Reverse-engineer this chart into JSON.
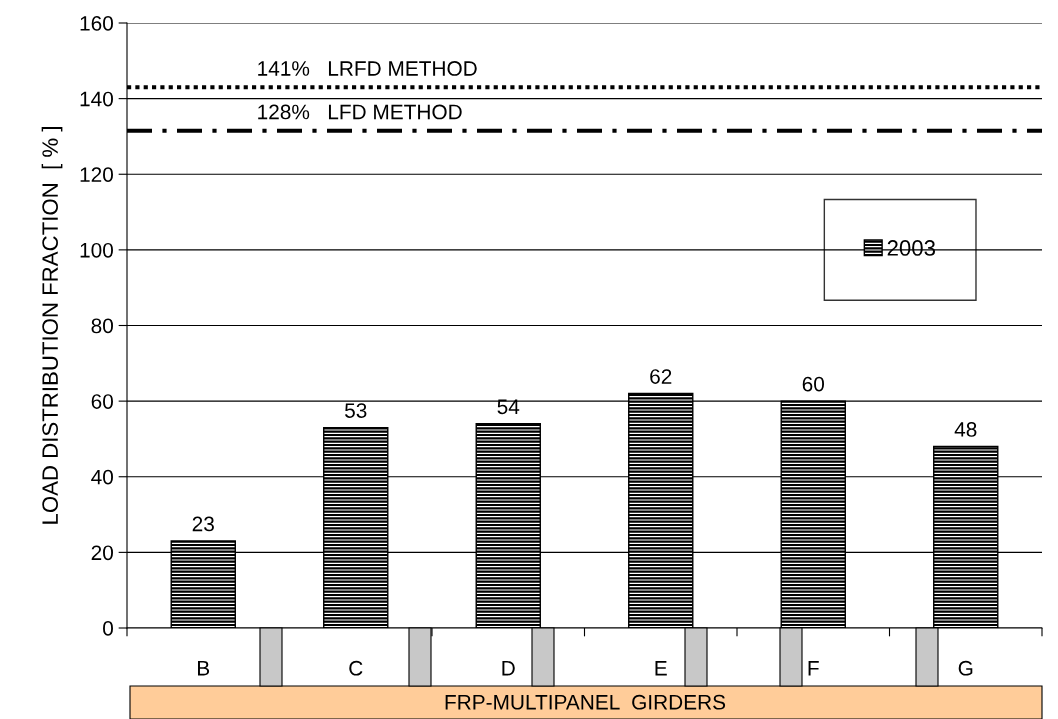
{
  "chart_data": {
    "type": "bar",
    "categories": [
      "B",
      "C",
      "D",
      "E",
      "F",
      "G"
    ],
    "series": [
      {
        "name": "2003",
        "color": "#000000",
        "values": [
          23,
          53,
          54,
          62,
          60,
          48
        ]
      }
    ],
    "ylabel": "LOAD DISTRIBUTION FRACTION  [ % ]",
    "xlabel": "FRP-MULTIPANEL  GIRDERS",
    "ylim": [
      0,
      160
    ],
    "yticks": [
      0,
      20,
      40,
      60,
      80,
      100,
      120,
      140,
      160
    ],
    "ref_lines": [
      {
        "axis": "y",
        "value": 143,
        "label": "141%   LRFD METHOD",
        "color": "#000000",
        "line_style": "dotted"
      },
      {
        "axis": "y",
        "value": 131.5,
        "label": "128%   LFD METHOD",
        "color": "#000000",
        "line_style": "dashdot"
      }
    ],
    "data_labels": true,
    "grid": "y",
    "legend": "right"
  }
}
